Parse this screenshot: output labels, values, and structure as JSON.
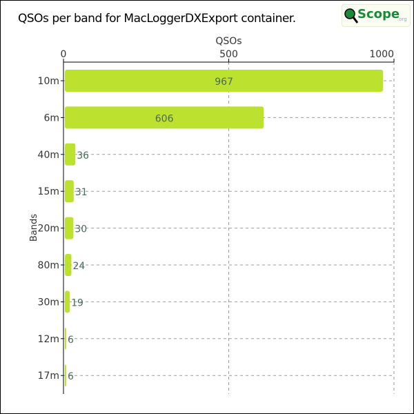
{
  "chart_data": {
    "type": "bar",
    "orientation": "horizontal",
    "title": "QSOs per band for MacLoggerDXExport container.",
    "xlabel": "QSOs",
    "ylabel": "Bands",
    "xlim": [
      0,
      1000
    ],
    "xticks": [
      0,
      500,
      1000
    ],
    "categories": [
      "10m",
      "6m",
      "40m",
      "15m",
      "20m",
      "80m",
      "30m",
      "12m",
      "17m"
    ],
    "values": [
      967,
      606,
      36,
      31,
      30,
      24,
      19,
      6,
      6
    ],
    "grid": true,
    "bar_color": "#bde12f"
  },
  "logo": {
    "text": "Scope",
    "suffix": ".org",
    "letter": "Q"
  }
}
